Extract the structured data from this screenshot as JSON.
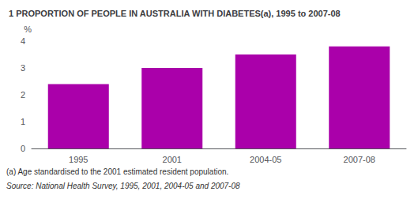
{
  "chart_data": {
    "type": "bar",
    "title": "1 PROPORTION OF PEOPLE IN AUSTRALIA WITH DIABETES(a), 1995 to 2007-08",
    "ylabel": "%",
    "categories": [
      "1995",
      "2001",
      "2004-05",
      "2007-08"
    ],
    "values": [
      2.4,
      3.0,
      3.5,
      3.8
    ],
    "color": "#AA00AA",
    "ylim": [
      0,
      4
    ],
    "yticks": [
      0,
      1,
      2,
      3,
      4
    ],
    "grid": false,
    "annotations": [
      "(a) Age standardised to the 2001 estimated resident population.",
      "Source: National Health Survey, 1995, 2001, 2004-05 and 2007-08"
    ]
  }
}
